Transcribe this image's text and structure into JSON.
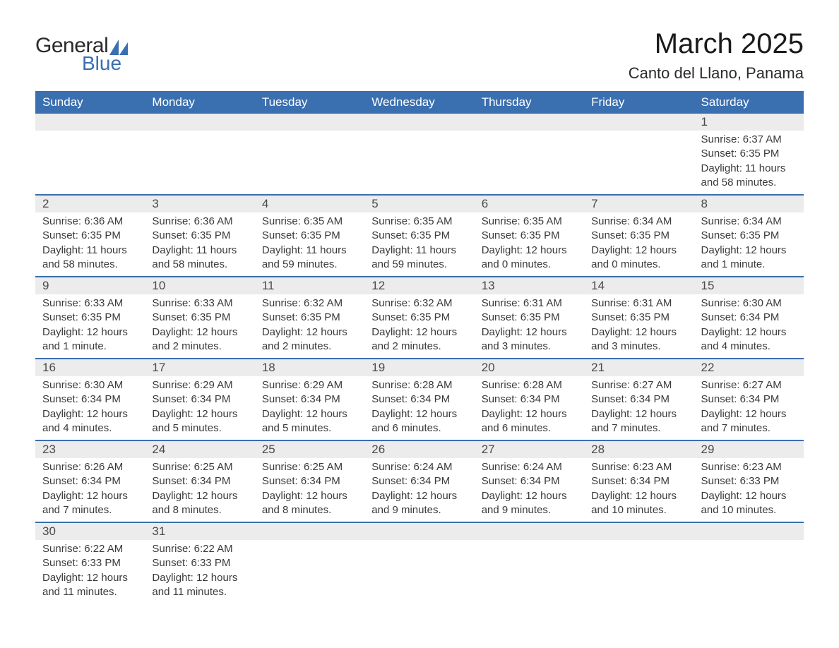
{
  "logo": {
    "text_general": "General",
    "text_blue": "Blue",
    "shape_color": "#3a6fb0"
  },
  "title": "March 2025",
  "location": "Canto del Llano, Panama",
  "colors": {
    "header_bg": "#3a6fb0",
    "header_text": "#ffffff",
    "daynum_bg": "#ececec",
    "row_divider": "#3a6fb0",
    "body_text": "#3a3a3a"
  },
  "weekdays": [
    "Sunday",
    "Monday",
    "Tuesday",
    "Wednesday",
    "Thursday",
    "Friday",
    "Saturday"
  ],
  "weeks": [
    [
      null,
      null,
      null,
      null,
      null,
      null,
      {
        "n": "1",
        "sr": "6:37 AM",
        "ss": "6:35 PM",
        "dl": "11 hours and 58 minutes."
      }
    ],
    [
      {
        "n": "2",
        "sr": "6:36 AM",
        "ss": "6:35 PM",
        "dl": "11 hours and 58 minutes."
      },
      {
        "n": "3",
        "sr": "6:36 AM",
        "ss": "6:35 PM",
        "dl": "11 hours and 58 minutes."
      },
      {
        "n": "4",
        "sr": "6:35 AM",
        "ss": "6:35 PM",
        "dl": "11 hours and 59 minutes."
      },
      {
        "n": "5",
        "sr": "6:35 AM",
        "ss": "6:35 PM",
        "dl": "11 hours and 59 minutes."
      },
      {
        "n": "6",
        "sr": "6:35 AM",
        "ss": "6:35 PM",
        "dl": "12 hours and 0 minutes."
      },
      {
        "n": "7",
        "sr": "6:34 AM",
        "ss": "6:35 PM",
        "dl": "12 hours and 0 minutes."
      },
      {
        "n": "8",
        "sr": "6:34 AM",
        "ss": "6:35 PM",
        "dl": "12 hours and 1 minute."
      }
    ],
    [
      {
        "n": "9",
        "sr": "6:33 AM",
        "ss": "6:35 PM",
        "dl": "12 hours and 1 minute."
      },
      {
        "n": "10",
        "sr": "6:33 AM",
        "ss": "6:35 PM",
        "dl": "12 hours and 2 minutes."
      },
      {
        "n": "11",
        "sr": "6:32 AM",
        "ss": "6:35 PM",
        "dl": "12 hours and 2 minutes."
      },
      {
        "n": "12",
        "sr": "6:32 AM",
        "ss": "6:35 PM",
        "dl": "12 hours and 2 minutes."
      },
      {
        "n": "13",
        "sr": "6:31 AM",
        "ss": "6:35 PM",
        "dl": "12 hours and 3 minutes."
      },
      {
        "n": "14",
        "sr": "6:31 AM",
        "ss": "6:35 PM",
        "dl": "12 hours and 3 minutes."
      },
      {
        "n": "15",
        "sr": "6:30 AM",
        "ss": "6:34 PM",
        "dl": "12 hours and 4 minutes."
      }
    ],
    [
      {
        "n": "16",
        "sr": "6:30 AM",
        "ss": "6:34 PM",
        "dl": "12 hours and 4 minutes."
      },
      {
        "n": "17",
        "sr": "6:29 AM",
        "ss": "6:34 PM",
        "dl": "12 hours and 5 minutes."
      },
      {
        "n": "18",
        "sr": "6:29 AM",
        "ss": "6:34 PM",
        "dl": "12 hours and 5 minutes."
      },
      {
        "n": "19",
        "sr": "6:28 AM",
        "ss": "6:34 PM",
        "dl": "12 hours and 6 minutes."
      },
      {
        "n": "20",
        "sr": "6:28 AM",
        "ss": "6:34 PM",
        "dl": "12 hours and 6 minutes."
      },
      {
        "n": "21",
        "sr": "6:27 AM",
        "ss": "6:34 PM",
        "dl": "12 hours and 7 minutes."
      },
      {
        "n": "22",
        "sr": "6:27 AM",
        "ss": "6:34 PM",
        "dl": "12 hours and 7 minutes."
      }
    ],
    [
      {
        "n": "23",
        "sr": "6:26 AM",
        "ss": "6:34 PM",
        "dl": "12 hours and 7 minutes."
      },
      {
        "n": "24",
        "sr": "6:25 AM",
        "ss": "6:34 PM",
        "dl": "12 hours and 8 minutes."
      },
      {
        "n": "25",
        "sr": "6:25 AM",
        "ss": "6:34 PM",
        "dl": "12 hours and 8 minutes."
      },
      {
        "n": "26",
        "sr": "6:24 AM",
        "ss": "6:34 PM",
        "dl": "12 hours and 9 minutes."
      },
      {
        "n": "27",
        "sr": "6:24 AM",
        "ss": "6:34 PM",
        "dl": "12 hours and 9 minutes."
      },
      {
        "n": "28",
        "sr": "6:23 AM",
        "ss": "6:34 PM",
        "dl": "12 hours and 10 minutes."
      },
      {
        "n": "29",
        "sr": "6:23 AM",
        "ss": "6:33 PM",
        "dl": "12 hours and 10 minutes."
      }
    ],
    [
      {
        "n": "30",
        "sr": "6:22 AM",
        "ss": "6:33 PM",
        "dl": "12 hours and 11 minutes."
      },
      {
        "n": "31",
        "sr": "6:22 AM",
        "ss": "6:33 PM",
        "dl": "12 hours and 11 minutes."
      },
      null,
      null,
      null,
      null,
      null
    ]
  ]
}
